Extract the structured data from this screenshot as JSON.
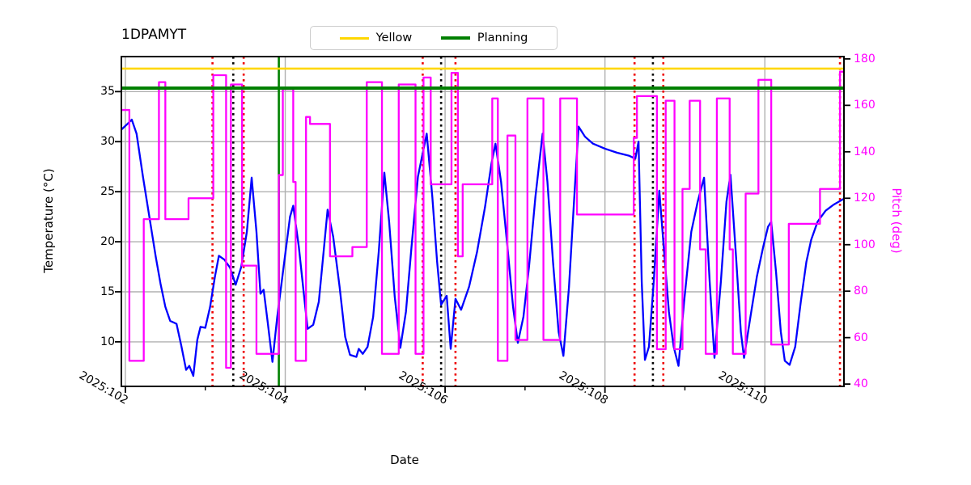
{
  "title": "1DPAMYT",
  "legend": {
    "items": [
      {
        "label": "Yellow",
        "color": "#ffd700"
      },
      {
        "label": "Planning",
        "color": "#008000"
      }
    ]
  },
  "colors": {
    "temperature": "#0000ff",
    "pitch": "#ff00ff",
    "yellow_limit": "#ffd700",
    "planning_limit": "#008000",
    "red_event": "#ee0000",
    "black_event": "#000000",
    "green_event": "#008000",
    "grid": "#b0b0b0",
    "spine": "#000000"
  },
  "chart_data": {
    "type": "line",
    "title": "1DPAMYT",
    "xlabel": "Date",
    "ylabel_left": "Temperature (°C)",
    "ylabel_right": "Pitch (deg)",
    "x_format": "2025:day-of-year",
    "xlim": [
      101.95,
      110.99
    ],
    "ylim_left": [
      5.55,
      38.5
    ],
    "ylim_right": [
      39,
      181
    ],
    "x_ticks_major": [
      {
        "day": 102,
        "label": "2025:102"
      },
      {
        "day": 104,
        "label": "2025:104"
      },
      {
        "day": 106,
        "label": "2025:106"
      },
      {
        "day": 108,
        "label": "2025:108"
      },
      {
        "day": 110,
        "label": "2025:110"
      }
    ],
    "x_ticks_minor": [
      103,
      105,
      107,
      109
    ],
    "y_ticks_left": [
      10,
      15,
      20,
      25,
      30,
      35
    ],
    "y_ticks_right": [
      40,
      60,
      80,
      100,
      120,
      140,
      160,
      180
    ],
    "grid": true,
    "legend_position": "upper-center-outside",
    "series": [
      {
        "name": "Temperature",
        "axis": "left",
        "style": "line",
        "color": "#0000ff",
        "points": [
          [
            101.95,
            31.2
          ],
          [
            102.03,
            31.8
          ],
          [
            102.08,
            32.2
          ],
          [
            102.14,
            30.8
          ],
          [
            102.22,
            26.5
          ],
          [
            102.3,
            22.5
          ],
          [
            102.38,
            18.5
          ],
          [
            102.44,
            15.8
          ],
          [
            102.5,
            13.5
          ],
          [
            102.56,
            12.1
          ],
          [
            102.64,
            11.8
          ],
          [
            102.7,
            9.6
          ],
          [
            102.76,
            7.2
          ],
          [
            102.8,
            7.6
          ],
          [
            102.85,
            6.6
          ],
          [
            102.9,
            10.2
          ],
          [
            102.94,
            11.5
          ],
          [
            103.0,
            11.4
          ],
          [
            103.06,
            13.5
          ],
          [
            103.12,
            16.5
          ],
          [
            103.17,
            18.6
          ],
          [
            103.24,
            18.2
          ],
          [
            103.31,
            17.4
          ],
          [
            103.38,
            15.7
          ],
          [
            103.45,
            17.5
          ],
          [
            103.52,
            21.0
          ],
          [
            103.58,
            26.4
          ],
          [
            103.64,
            21.0
          ],
          [
            103.69,
            14.8
          ],
          [
            103.73,
            15.2
          ],
          [
            103.78,
            12.0
          ],
          [
            103.84,
            8.0
          ],
          [
            103.9,
            12.5
          ],
          [
            103.98,
            17.5
          ],
          [
            104.06,
            22.5
          ],
          [
            104.1,
            23.6
          ],
          [
            104.17,
            19.5
          ],
          [
            104.23,
            15.0
          ],
          [
            104.28,
            11.3
          ],
          [
            104.35,
            11.7
          ],
          [
            104.42,
            14.0
          ],
          [
            104.48,
            19.0
          ],
          [
            104.53,
            23.2
          ],
          [
            104.6,
            20.5
          ],
          [
            104.68,
            15.5
          ],
          [
            104.75,
            10.5
          ],
          [
            104.81,
            8.7
          ],
          [
            104.89,
            8.5
          ],
          [
            104.92,
            9.3
          ],
          [
            104.97,
            8.8
          ],
          [
            105.03,
            9.5
          ],
          [
            105.1,
            12.5
          ],
          [
            105.17,
            19.0
          ],
          [
            105.24,
            26.9
          ],
          [
            105.3,
            22.0
          ],
          [
            105.37,
            14.5
          ],
          [
            105.44,
            9.4
          ],
          [
            105.51,
            13.0
          ],
          [
            105.58,
            19.5
          ],
          [
            105.66,
            26.5
          ],
          [
            105.77,
            30.8
          ],
          [
            105.84,
            24.5
          ],
          [
            105.9,
            18.0
          ],
          [
            105.95,
            13.7
          ],
          [
            106.02,
            14.6
          ],
          [
            106.07,
            9.3
          ],
          [
            106.13,
            14.3
          ],
          [
            106.2,
            13.2
          ],
          [
            106.3,
            15.5
          ],
          [
            106.4,
            19.0
          ],
          [
            106.5,
            23.5
          ],
          [
            106.58,
            27.8
          ],
          [
            106.63,
            29.8
          ],
          [
            106.7,
            26.0
          ],
          [
            106.78,
            19.5
          ],
          [
            106.85,
            13.5
          ],
          [
            106.91,
            9.9
          ],
          [
            106.98,
            12.5
          ],
          [
            107.05,
            17.5
          ],
          [
            107.13,
            24.5
          ],
          [
            107.22,
            30.8
          ],
          [
            107.28,
            26.0
          ],
          [
            107.35,
            18.0
          ],
          [
            107.42,
            11.0
          ],
          [
            107.48,
            8.6
          ],
          [
            107.55,
            15.5
          ],
          [
            107.62,
            25.0
          ],
          [
            107.67,
            31.5
          ],
          [
            107.75,
            30.5
          ],
          [
            107.85,
            29.8
          ],
          [
            108.0,
            29.3
          ],
          [
            108.15,
            28.9
          ],
          [
            108.3,
            28.6
          ],
          [
            108.38,
            28.3
          ],
          [
            108.42,
            30.0
          ],
          [
            108.46,
            16.0
          ],
          [
            108.5,
            8.2
          ],
          [
            108.55,
            9.5
          ],
          [
            108.61,
            16.0
          ],
          [
            108.68,
            25.1
          ],
          [
            108.74,
            19.0
          ],
          [
            108.8,
            13.0
          ],
          [
            108.86,
            9.5
          ],
          [
            108.92,
            7.6
          ],
          [
            108.99,
            14.0
          ],
          [
            109.08,
            21.0
          ],
          [
            109.16,
            24.0
          ],
          [
            109.24,
            26.4
          ],
          [
            109.31,
            16.0
          ],
          [
            109.37,
            8.4
          ],
          [
            109.45,
            16.0
          ],
          [
            109.52,
            24.0
          ],
          [
            109.57,
            26.7
          ],
          [
            109.64,
            18.5
          ],
          [
            109.7,
            11.0
          ],
          [
            109.74,
            8.4
          ],
          [
            109.82,
            12.5
          ],
          [
            109.9,
            16.5
          ],
          [
            109.98,
            19.5
          ],
          [
            110.04,
            21.5
          ],
          [
            110.08,
            22.0
          ],
          [
            110.14,
            17.0
          ],
          [
            110.2,
            11.0
          ],
          [
            110.25,
            8.1
          ],
          [
            110.31,
            7.7
          ],
          [
            110.38,
            9.5
          ],
          [
            110.45,
            14.0
          ],
          [
            110.52,
            18.0
          ],
          [
            110.58,
            20.2
          ],
          [
            110.66,
            22.0
          ],
          [
            110.76,
            23.1
          ],
          [
            110.86,
            23.7
          ],
          [
            110.99,
            24.3
          ]
        ]
      },
      {
        "name": "Pitch",
        "axis": "right",
        "style": "step",
        "color": "#ff00ff",
        "points": [
          [
            101.95,
            158
          ],
          [
            102.05,
            50
          ],
          [
            102.23,
            111
          ],
          [
            102.42,
            170
          ],
          [
            102.5,
            111
          ],
          [
            102.79,
            120
          ],
          [
            103.1,
            173
          ],
          [
            103.26,
            47
          ],
          [
            103.32,
            169
          ],
          [
            103.46,
            91
          ],
          [
            103.64,
            53
          ],
          [
            103.92,
            130
          ],
          [
            103.97,
            167
          ],
          [
            104.1,
            127
          ],
          [
            104.13,
            50
          ],
          [
            104.26,
            155
          ],
          [
            104.31,
            152
          ],
          [
            104.56,
            95
          ],
          [
            104.84,
            99
          ],
          [
            105.02,
            170
          ],
          [
            105.21,
            53
          ],
          [
            105.42,
            169
          ],
          [
            105.63,
            53
          ],
          [
            105.73,
            172
          ],
          [
            105.82,
            126
          ],
          [
            106.08,
            174
          ],
          [
            106.16,
            95
          ],
          [
            106.22,
            126
          ],
          [
            106.59,
            163
          ],
          [
            106.66,
            50
          ],
          [
            106.78,
            147
          ],
          [
            106.88,
            59
          ],
          [
            107.03,
            163
          ],
          [
            107.23,
            59
          ],
          [
            107.44,
            163
          ],
          [
            107.65,
            113
          ],
          [
            108.36,
            146
          ],
          [
            108.4,
            164
          ],
          [
            108.65,
            55
          ],
          [
            108.76,
            162
          ],
          [
            108.87,
            55
          ],
          [
            108.97,
            124
          ],
          [
            109.06,
            162
          ],
          [
            109.19,
            98
          ],
          [
            109.26,
            53
          ],
          [
            109.4,
            163
          ],
          [
            109.56,
            98
          ],
          [
            109.6,
            53
          ],
          [
            109.76,
            122
          ],
          [
            109.92,
            171
          ],
          [
            110.08,
            57
          ],
          [
            110.3,
            109
          ],
          [
            110.69,
            124
          ],
          [
            110.94,
            174.5
          ]
        ]
      }
    ],
    "reference_lines": {
      "horizontal": [
        {
          "name": "Yellow",
          "axis": "left",
          "value": 37.3,
          "color": "#ffd700",
          "style": "solid",
          "width": 2.5
        },
        {
          "name": "Planning",
          "axis": "left",
          "value": 35.35,
          "color": "#008000",
          "style": "solid",
          "width": 4
        }
      ],
      "vertical": [
        {
          "name": "red-dotted-events",
          "days": [
            103.09,
            103.48,
            105.72,
            106.13,
            108.37,
            108.73,
            110.94
          ],
          "color": "#ee0000",
          "style": "dotted"
        },
        {
          "name": "black-dotted-events",
          "days": [
            103.35,
            105.95,
            108.6
          ],
          "color": "#000000",
          "style": "dotted"
        },
        {
          "name": "green-solid-event",
          "days": [
            103.92
          ],
          "color": "#008000",
          "style": "solid"
        }
      ]
    }
  }
}
